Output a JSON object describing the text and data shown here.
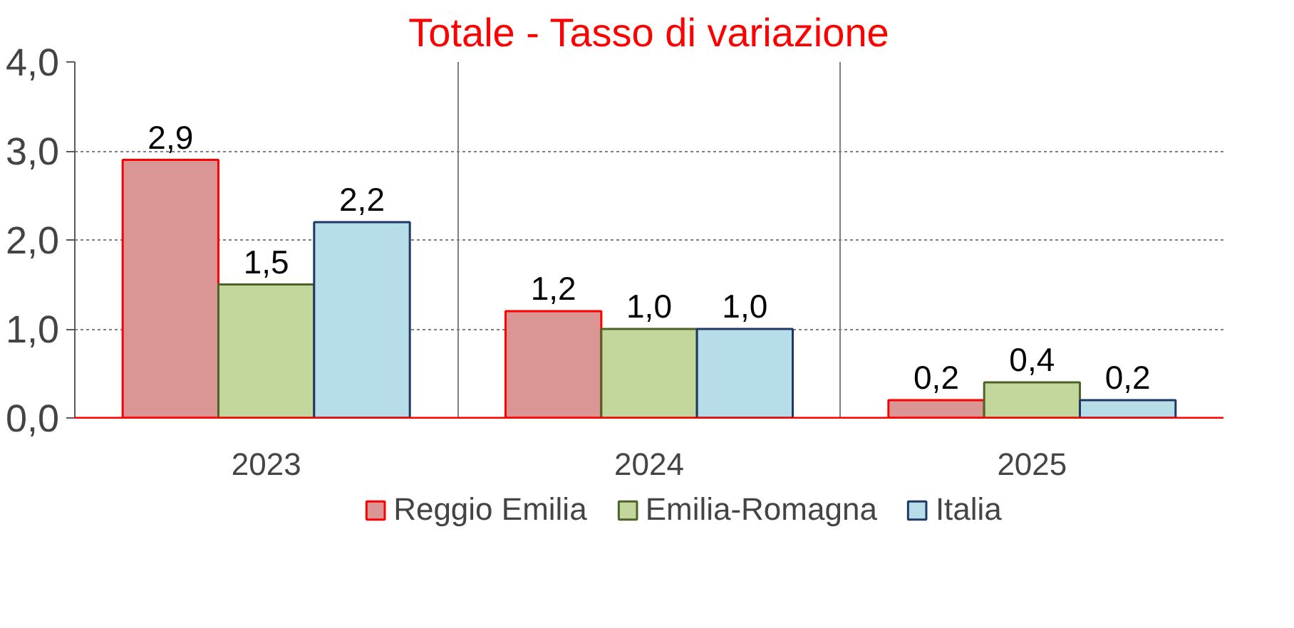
{
  "chart_data": {
    "type": "bar",
    "title": "Totale - Tasso di variazione",
    "categories": [
      "2023",
      "2024",
      "2025"
    ],
    "series": [
      {
        "name": "Reggio Emilia",
        "color": "#d99694",
        "values": [
          2.9,
          1.2,
          0.2
        ],
        "value_labels": [
          "2,9",
          "1,2",
          "0,2"
        ]
      },
      {
        "name": "Emilia-Romagna",
        "color": "#c3d69b",
        "values": [
          1.5,
          1.0,
          0.4
        ],
        "value_labels": [
          "1,5",
          "1,0",
          "0,4"
        ]
      },
      {
        "name": "Italia",
        "color": "#b7dee8",
        "values": [
          2.2,
          1.0,
          0.2
        ],
        "value_labels": [
          "2,2",
          "1,0",
          "0,2"
        ]
      }
    ],
    "ylim": [
      0,
      4
    ],
    "yticks": [
      {
        "value": 0,
        "label": "0,0"
      },
      {
        "value": 1,
        "label": "1,0"
      },
      {
        "value": 2,
        "label": "2,0"
      },
      {
        "value": 3,
        "label": "3,0"
      },
      {
        "value": 4,
        "label": "4,0"
      }
    ],
    "grid": true,
    "legend": "bottom"
  }
}
